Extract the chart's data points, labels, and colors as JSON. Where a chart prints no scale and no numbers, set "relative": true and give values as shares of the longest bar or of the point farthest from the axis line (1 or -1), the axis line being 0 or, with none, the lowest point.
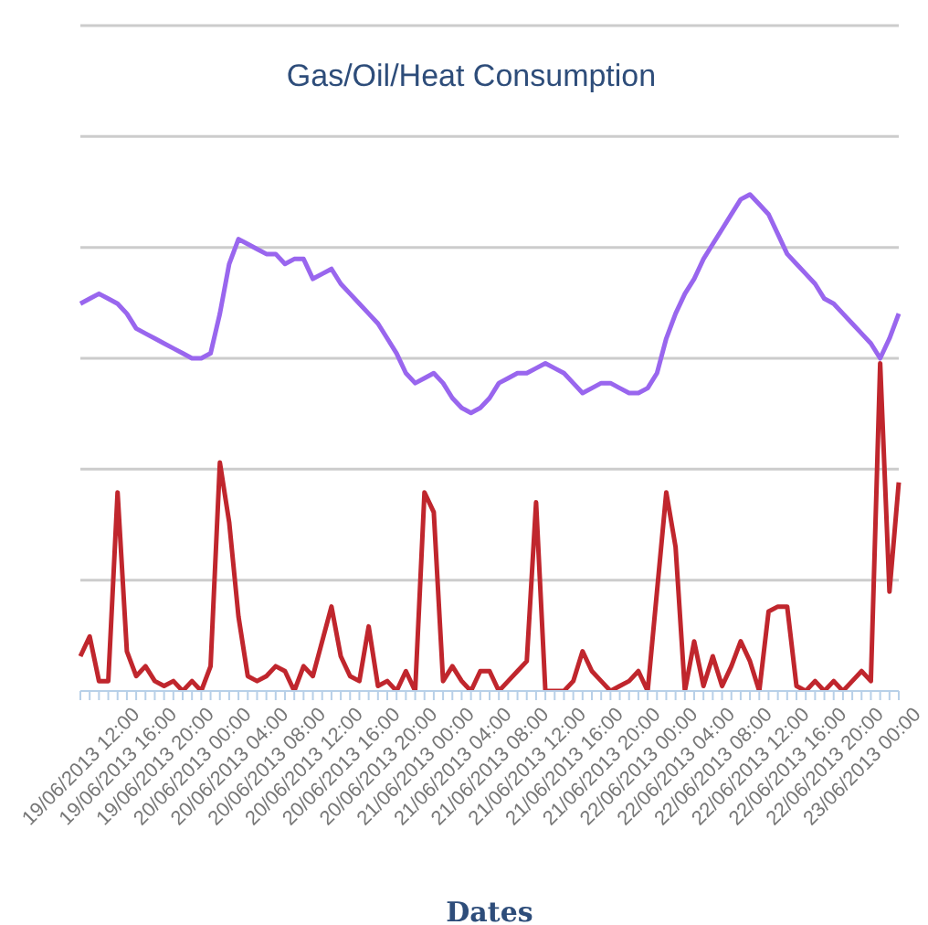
{
  "chart_data": {
    "type": "line",
    "title": "Gas/Oil/Heat Consumption",
    "xlabel": "Dates",
    "relative": true,
    "grid": "y",
    "marker": "none",
    "line_style": "solid",
    "categories": [
      "19/06/2013 12:00",
      null,
      null,
      null,
      "19/06/2013 16:00",
      null,
      null,
      null,
      "19/06/2013 20:00",
      null,
      null,
      null,
      "20/06/2013 00:00",
      null,
      null,
      null,
      "20/06/2013 04:00",
      null,
      null,
      null,
      "20/06/2013 08:00",
      null,
      null,
      null,
      "20/06/2013 12:00",
      null,
      null,
      null,
      "20/06/2013 16:00",
      null,
      null,
      null,
      "20/06/2013 20:00",
      null,
      null,
      null,
      "21/06/2013 00:00",
      null,
      null,
      null,
      "21/06/2013 04:00",
      null,
      null,
      null,
      "21/06/2013 08:00",
      null,
      null,
      null,
      "21/06/2013 12:00",
      null,
      null,
      null,
      "21/06/2013 16:00",
      null,
      null,
      null,
      "21/06/2013 20:00",
      null,
      null,
      null,
      "22/06/2013 00:00",
      null,
      null,
      null,
      "22/06/2013 04:00",
      null,
      null,
      null,
      "22/06/2013 08:00",
      null,
      null,
      null,
      "22/06/2013 12:00",
      null,
      null,
      null,
      "22/06/2013 16:00",
      null,
      null,
      null,
      "22/06/2013 20:00",
      null,
      null,
      null,
      "23/06/2013 00:00",
      null,
      null,
      null,
      null
    ],
    "series": [
      {
        "color": "#9966ee",
        "values": [
          0.78,
          0.79,
          0.8,
          0.79,
          0.78,
          0.76,
          0.73,
          0.72,
          0.71,
          0.7,
          0.69,
          0.68,
          0.67,
          0.67,
          0.68,
          0.76,
          0.86,
          0.91,
          0.9,
          0.89,
          0.88,
          0.88,
          0.86,
          0.87,
          0.87,
          0.83,
          0.84,
          0.85,
          0.82,
          0.8,
          0.78,
          0.76,
          0.74,
          0.71,
          0.68,
          0.64,
          0.62,
          0.63,
          0.64,
          0.62,
          0.59,
          0.57,
          0.56,
          0.57,
          0.59,
          0.62,
          0.63,
          0.64,
          0.64,
          0.65,
          0.66,
          0.65,
          0.64,
          0.62,
          0.6,
          0.61,
          0.62,
          0.62,
          0.61,
          0.6,
          0.6,
          0.61,
          0.64,
          0.71,
          0.76,
          0.8,
          0.83,
          0.87,
          0.9,
          0.93,
          0.96,
          0.99,
          1,
          0.98,
          0.96,
          0.92,
          0.88,
          0.86,
          0.84,
          0.82,
          0.79,
          0.78,
          0.76,
          0.74,
          0.72,
          0.7,
          0.67,
          0.71,
          0.76
        ]
      },
      {
        "color": "#c0262d",
        "values": [
          0.07,
          0.11,
          0.02,
          0.02,
          0.4,
          0.08,
          0.03,
          0.05,
          0.02,
          0.01,
          0.02,
          0,
          0.02,
          0,
          0.05,
          0.46,
          0.34,
          0.15,
          0.03,
          0.02,
          0.03,
          0.05,
          0.04,
          0,
          0.05,
          0.03,
          0.1,
          0.17,
          0.07,
          0.03,
          0.02,
          0.13,
          0.01,
          0.02,
          0,
          0.04,
          0,
          0.4,
          0.36,
          0.02,
          0.05,
          0.02,
          0,
          0.04,
          0.04,
          0,
          0.02,
          0.04,
          0.06,
          0.38,
          0,
          0,
          0,
          0.02,
          0.08,
          0.04,
          0.02,
          0,
          0.01,
          0.02,
          0.04,
          0,
          0.2,
          0.4,
          0.29,
          0,
          0.1,
          0.01,
          0.07,
          0.01,
          0.05,
          0.1,
          0.06,
          0,
          0.16,
          0.17,
          0.17,
          0.01,
          0,
          0.02,
          0,
          0.02,
          0,
          0.02,
          0.04,
          0.02,
          0.66,
          0.2,
          0.42
        ]
      }
    ]
  }
}
